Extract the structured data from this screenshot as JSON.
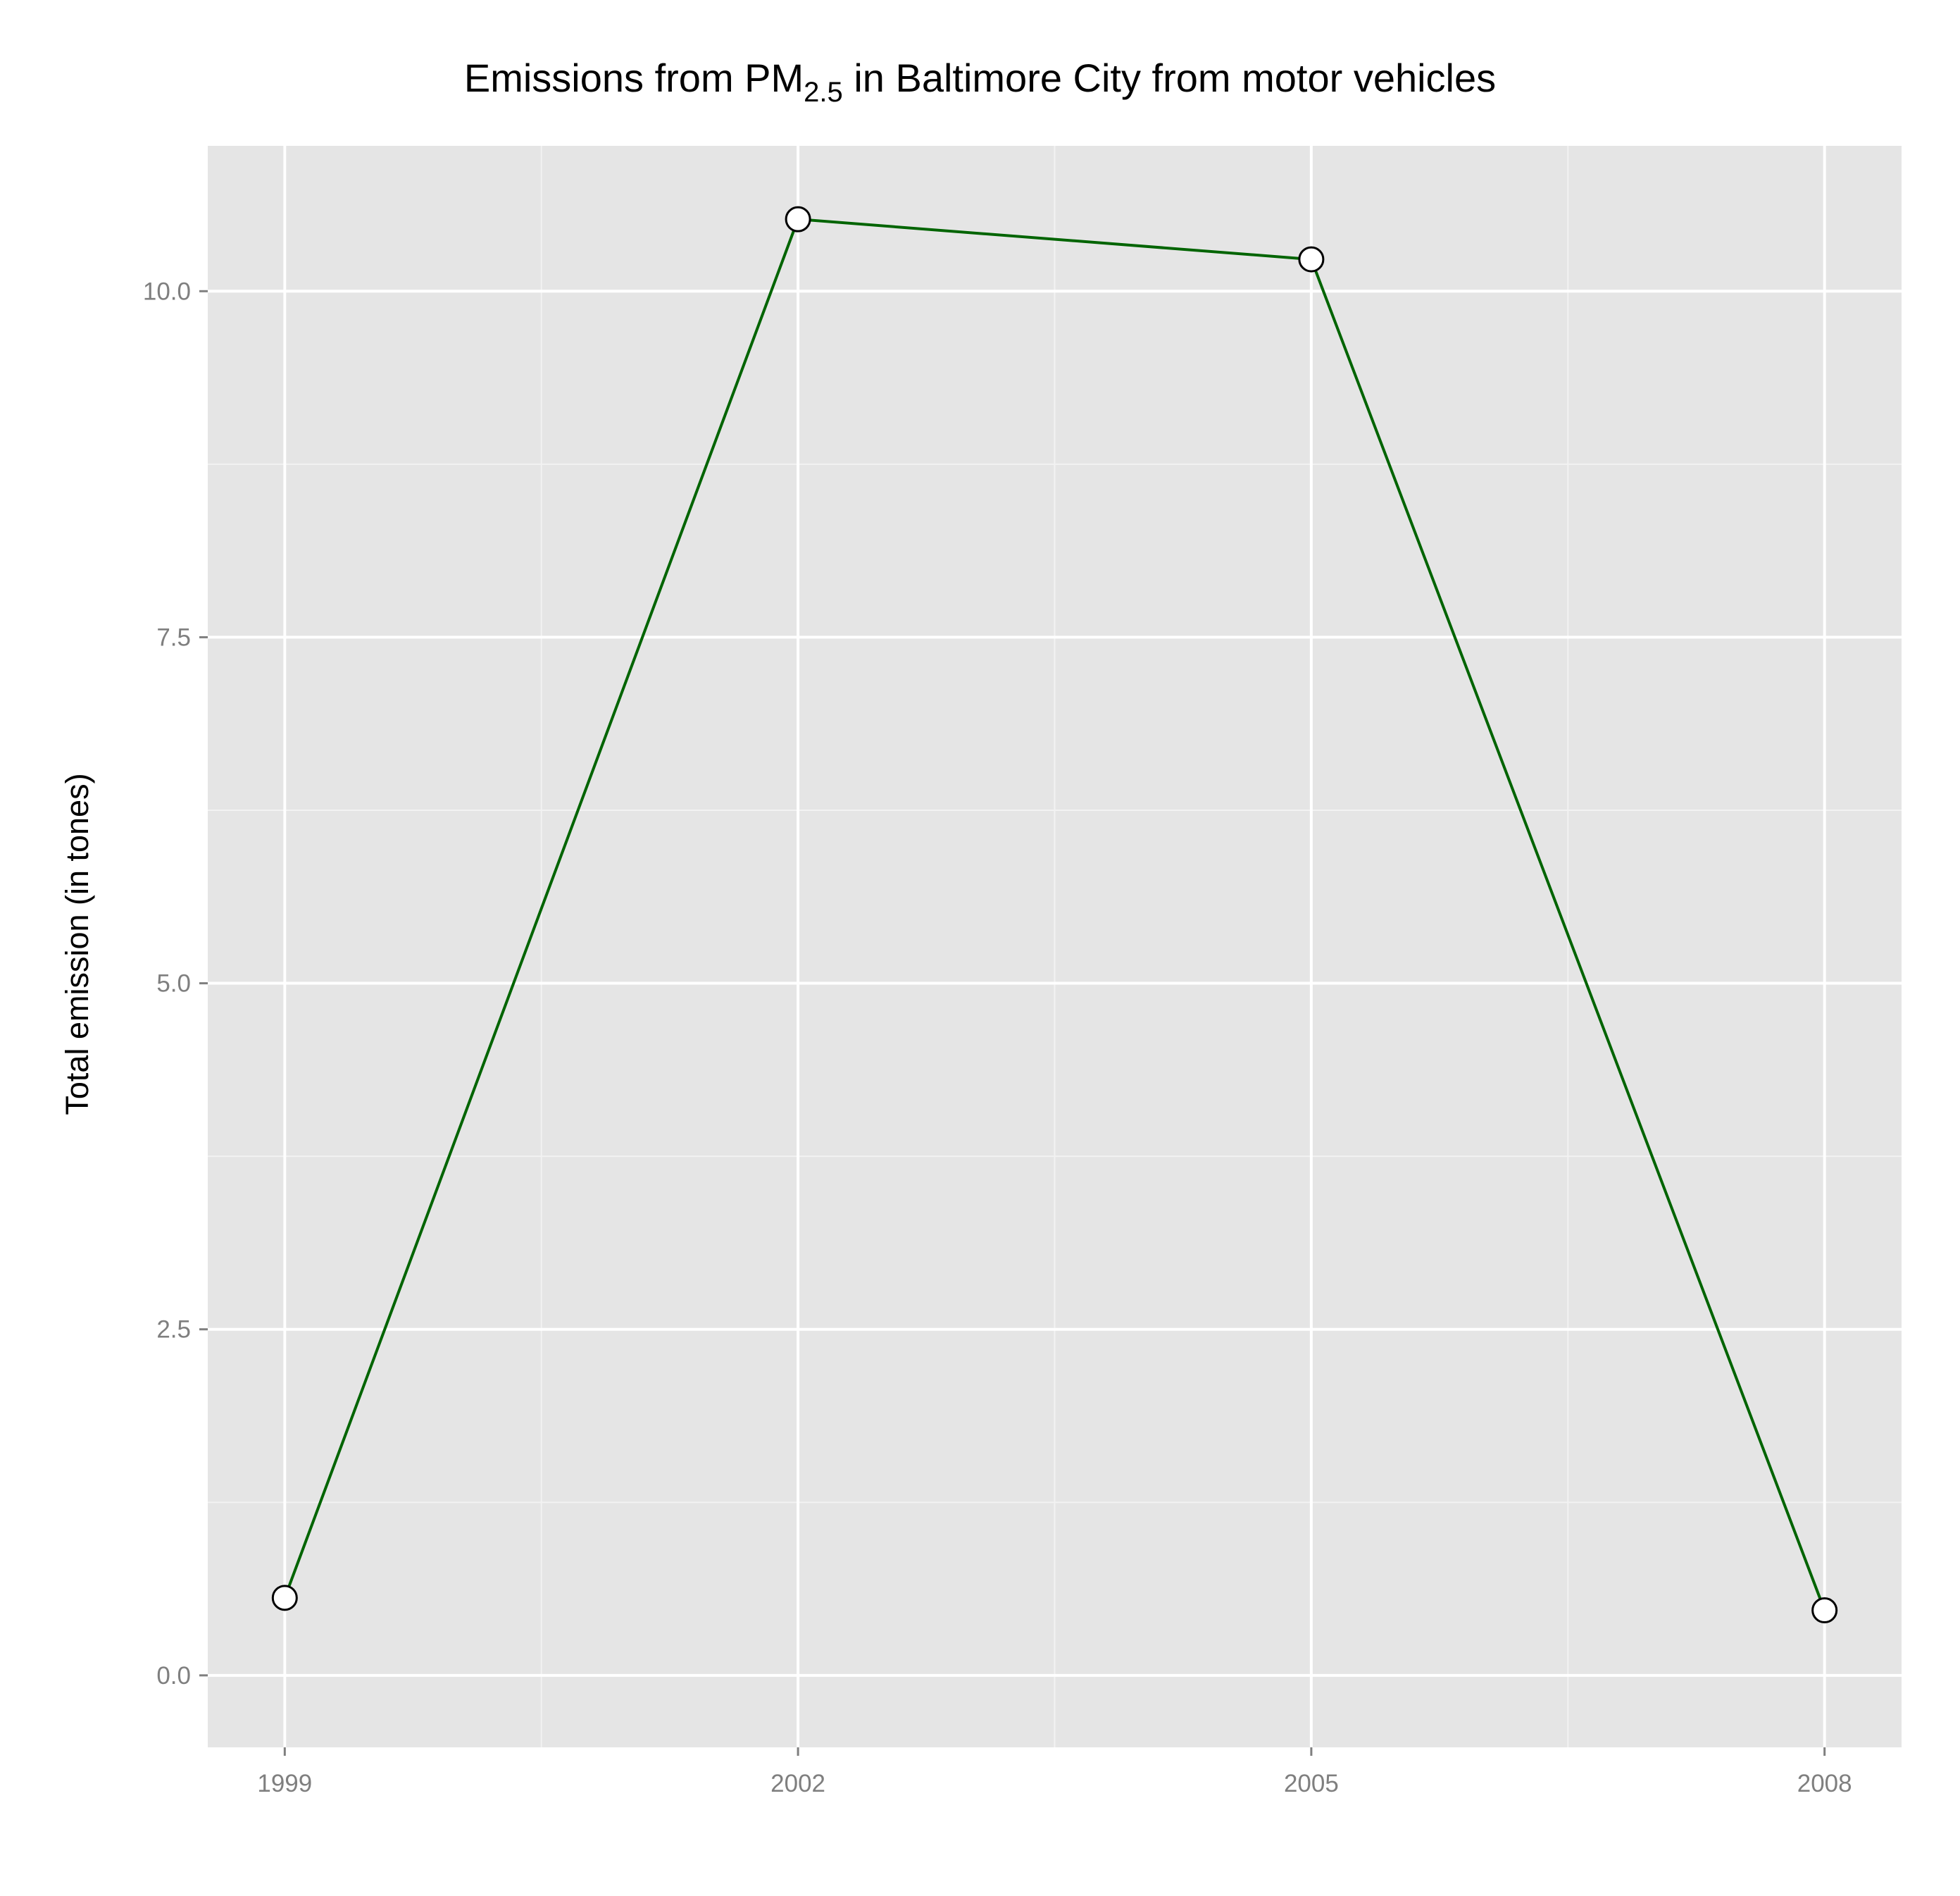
{
  "chart_data": {
    "type": "line",
    "title_main": "Emissions from PM",
    "title_sub": "2.5",
    "title_rest": " in Baltimore City from motor vehicles",
    "xlabel": "",
    "ylabel": "Total emission (in tones)",
    "x": [
      1999,
      2002,
      2005,
      2008
    ],
    "x_tick_labels": [
      "1999",
      "2002",
      "2005",
      "2008"
    ],
    "xlim": [
      1998.55,
      2008.45
    ],
    "y_ticks": [
      0.0,
      2.5,
      5.0,
      7.5,
      10.0
    ],
    "y_tick_labels": [
      "0.0",
      "2.5",
      "5.0",
      "7.5",
      "10.0"
    ],
    "ylim": [
      -0.52,
      11.05
    ],
    "series": [
      {
        "values": [
          0.56,
          10.52,
          10.23,
          0.47
        ]
      }
    ],
    "line_color": "#006400",
    "marker_fill": "#ffffff",
    "marker_stroke": "#000000",
    "panel_background": "#e5e5e5",
    "grid": true,
    "legend": "none"
  }
}
